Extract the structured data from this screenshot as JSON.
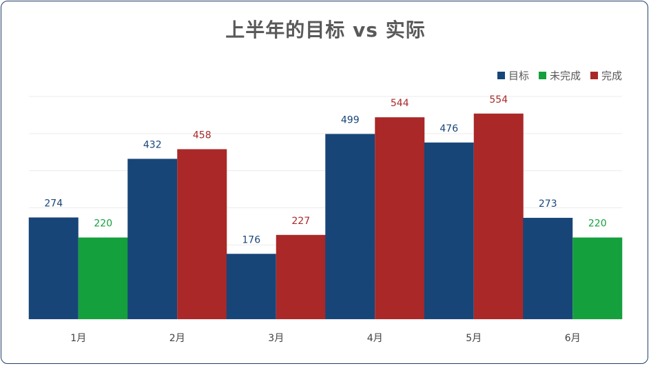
{
  "chart_data": {
    "type": "bar",
    "title": "上半年的目标 vs 实际",
    "categories": [
      "1月",
      "2月",
      "3月",
      "4月",
      "5月",
      "6月"
    ],
    "series": [
      {
        "name": "目标",
        "values": [
          274,
          432,
          176,
          499,
          476,
          273
        ],
        "color": "#174578"
      },
      {
        "name": "未完成",
        "values": [
          220,
          null,
          null,
          null,
          null,
          220
        ],
        "color": "#14a03c"
      },
      {
        "name": "完成",
        "values": [
          null,
          458,
          227,
          544,
          554,
          null
        ],
        "color": "#aa2828"
      }
    ],
    "ylim": [
      0,
      600
    ],
    "grid": true,
    "legend_position": "top-right",
    "xlabel": "",
    "ylabel": ""
  }
}
